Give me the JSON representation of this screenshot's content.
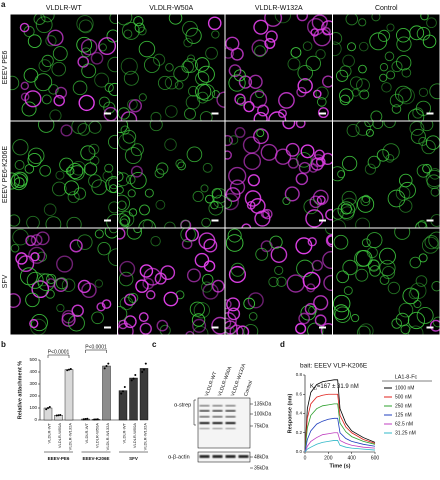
{
  "panel_a": {
    "panel_label": "a",
    "columns": [
      "VLDLR-WT",
      "VLDLR-W50A",
      "VLDLR-W132A",
      "Control"
    ],
    "rows": [
      "EEEV PE6",
      "EEEV PE6-K206E",
      "SFV"
    ]
  },
  "chart_data": [
    {
      "type": "bar",
      "panel_label": "b",
      "ylabel": "Relative attachment %",
      "ylim": [
        0,
        500
      ],
      "yticks": [
        0,
        100,
        200,
        300,
        400,
        500
      ],
      "annotations": [
        "P<0.0001",
        "P<0.0001"
      ],
      "groups": [
        {
          "name": "EEEV-PE6",
          "color": "#d9d9d9",
          "categories": [
            "VLDLR-WT",
            "VLDLR-W50A",
            "VLDLR-W132A"
          ],
          "values": [
            100,
            40,
            420
          ],
          "points": [
            [
              90,
              100,
              108
            ],
            [
              38,
              40,
              42
            ],
            [
              415,
              420,
              425
            ]
          ]
        },
        {
          "name": "EEEV-K206E",
          "color": "#8c8c8c",
          "categories": [
            "VLDLR-WT",
            "VLDLR-W50A",
            "VLDLR-W132A"
          ],
          "values": [
            8,
            5,
            450
          ],
          "points": [
            [
              6,
              8,
              10
            ],
            [
              4,
              5,
              6
            ],
            [
              430,
              450,
              470
            ]
          ]
        },
        {
          "name": "SFV",
          "color": "#3a3a3a",
          "categories": [
            "VLDLR-WT",
            "VLDLR-W50A",
            "VLDLR-W132A"
          ],
          "values": [
            245,
            350,
            430
          ],
          "points": [
            [
              220,
              240,
              275
            ],
            [
              330,
              345,
              375
            ],
            [
              400,
              420,
              470
            ]
          ]
        }
      ]
    },
    {
      "type": "line",
      "panel_label": "d",
      "title": "bait: EEEV VLP-K206E",
      "kd_main": "K",
      "kd_sub": "D",
      "kd_rest": "=167 ± 31.9 nM",
      "xlabel": "Time (s)",
      "ylabel": "Response (nm)",
      "legend_title": "LA1-8-Fc",
      "xlim": [
        0,
        600
      ],
      "xticks": [
        0,
        200,
        400,
        600
      ],
      "ylim": [
        0,
        0.8
      ],
      "yticks": [
        {
          "value": 0,
          "label": "0.0"
        },
        {
          "value": 0.2,
          "label": "0.2"
        },
        {
          "value": 0.4,
          "label": "0.4"
        },
        {
          "value": 0.6,
          "label": "0.6"
        },
        {
          "value": 0.8,
          "label": "0.8"
        }
      ],
      "x": [
        0,
        20,
        50,
        100,
        150,
        200,
        250,
        280,
        300,
        350,
        400,
        500,
        600
      ],
      "series": [
        {
          "name": "1000 nM",
          "color": "#000000",
          "values": [
            0,
            0.45,
            0.62,
            0.7,
            0.73,
            0.74,
            0.75,
            0.75,
            0.45,
            0.3,
            0.22,
            0.15,
            0.1
          ]
        },
        {
          "name": "500 nM",
          "color": "#e0201b",
          "values": [
            0,
            0.35,
            0.5,
            0.57,
            0.59,
            0.6,
            0.6,
            0.6,
            0.38,
            0.26,
            0.2,
            0.13,
            0.09
          ]
        },
        {
          "name": "250 nM",
          "color": "#2ca02c",
          "values": [
            0,
            0.25,
            0.38,
            0.45,
            0.48,
            0.49,
            0.5,
            0.5,
            0.3,
            0.21,
            0.16,
            0.11,
            0.08
          ]
        },
        {
          "name": "125 nM",
          "color": "#1f3fbf",
          "values": [
            0,
            0.13,
            0.22,
            0.29,
            0.32,
            0.34,
            0.35,
            0.35,
            0.2,
            0.14,
            0.11,
            0.08,
            0.06
          ]
        },
        {
          "name": "62.5 nM",
          "color": "#c03fc0",
          "values": [
            0,
            0.06,
            0.11,
            0.15,
            0.18,
            0.19,
            0.2,
            0.2,
            0.12,
            0.09,
            0.07,
            0.05,
            0.04
          ]
        },
        {
          "name": "31.25 nM",
          "color": "#30b8c8",
          "values": [
            0,
            0.03,
            0.05,
            0.08,
            0.1,
            0.11,
            0.12,
            0.12,
            0.07,
            0.05,
            0.04,
            0.03,
            0.02
          ]
        }
      ]
    }
  ],
  "blot": {
    "panel_label": "c",
    "lanes": [
      "VLDLR-WT",
      "VLDLR-W50A",
      "VLDLR-W132A",
      "Control"
    ],
    "antibodies": [
      "α-strep",
      "α-β-actin"
    ],
    "markers": [
      "135kDa",
      "100kDa",
      "75kDa",
      "48kDa",
      "35kDa"
    ]
  }
}
